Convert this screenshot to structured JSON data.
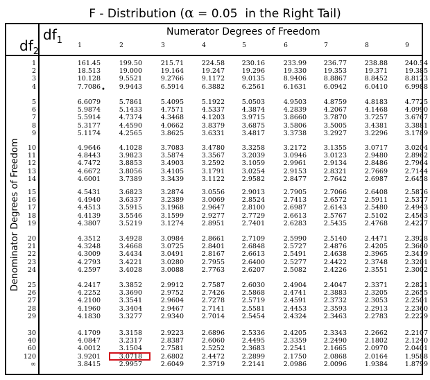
{
  "title": {
    "prefix": "F - Distribution (",
    "alpha": "α",
    "suffix": " = 0.05  in the Right Tail)"
  },
  "header": {
    "df2": "df",
    "df2_sub": "2",
    "df1": "df",
    "df1_sub": "1",
    "numerator_label": "Numerator Degrees of Freedom",
    "denominator_label": "Denominator Degrees of Freedom",
    "columns": [
      "1",
      "2",
      "3",
      "4",
      "5",
      "6",
      "7",
      "8",
      "9"
    ]
  },
  "row_labels": [
    "1",
    "2",
    "3",
    "4",
    "5",
    "6",
    "7",
    "8",
    "9",
    "10",
    "11",
    "12",
    "13",
    "14",
    "15",
    "16",
    "17",
    "18",
    "19",
    "20",
    "21",
    "22",
    "23",
    "24",
    "25",
    "26",
    "27",
    "28",
    "29",
    "30",
    "40",
    "60",
    "120",
    "∞"
  ],
  "rows": [
    [
      "161.45",
      "199.50",
      "215.71",
      "224.58",
      "230.16",
      "233.99",
      "236.77",
      "238.88",
      "240.54"
    ],
    [
      "18.513",
      "19.000",
      "19.164",
      "19.247",
      "19.296",
      "19.330",
      "19.353",
      "19.371",
      "19.385"
    ],
    [
      "10.128",
      "9.5521",
      "9.2766",
      "9.1172",
      "9.0135",
      "8.9406",
      "8.8867",
      "8.8452",
      "8.8123"
    ],
    [
      "7.7086",
      "9.9443",
      "6.5914",
      "6.3882",
      "6.2561",
      "6.1631",
      "6.0942",
      "6.0410",
      "6.9988"
    ],
    [
      "6.6079",
      "5.7861",
      "5.4095",
      "5.1922",
      "5.0503",
      "4.9503",
      "4.8759",
      "4.8183",
      "4.7725"
    ],
    [
      "5.9874",
      "5.1433",
      "4.7571",
      "4.5337",
      "4.3874",
      "4.2839",
      "4.2067",
      "4.1468",
      "4.0990"
    ],
    [
      "5.5914",
      "4.7374",
      "4.3468",
      "4.1203",
      "3.9715",
      "3.8660",
      "3.7870",
      "3.7257",
      "3.6767"
    ],
    [
      "5.3177",
      "4.4590",
      "4.0662",
      "3.8379",
      "3.6875",
      "3.5806",
      "3.5005",
      "3.4381",
      "3.3881"
    ],
    [
      "5.1174",
      "4.2565",
      "3.8625",
      "3.6331",
      "3.4817",
      "3.3738",
      "3.2927",
      "3.2296",
      "3.1789"
    ],
    [
      "4.9646",
      "4.1028",
      "3.7083",
      "3.4780",
      "3.3258",
      "3.2172",
      "3.1355",
      "3.0717",
      "3.0204"
    ],
    [
      "4.8443",
      "3.9823",
      "3.5874",
      "3.3567",
      "3.2039",
      "3.0946",
      "3.0123",
      "2.9480",
      "2.8962"
    ],
    [
      "4.7472",
      "3.8853",
      "3.4903",
      "3.2592",
      "3.1059",
      "2.9961",
      "2.9134",
      "2.8486",
      "2.7964"
    ],
    [
      "4.6672",
      "3.8056",
      "3.4105",
      "3.1791",
      "3.0254",
      "2.9153",
      "2.8321",
      "2.7669",
      "2.7144"
    ],
    [
      "4.6001",
      "3.7389",
      "3.3439",
      "3.1122",
      "2.9582",
      "2.8477",
      "2.7642",
      "2.6987",
      "2.6458"
    ],
    [
      "4.5431",
      "3.6823",
      "3.2874",
      "3.0556",
      "2.9013",
      "2.7905",
      "2.7066",
      "2.6408",
      "2.5876"
    ],
    [
      "4.4940",
      "3.6337",
      "3.2389",
      "3.0069",
      "2.8524",
      "2.7413",
      "2.6572",
      "2.5911",
      "2.5377"
    ],
    [
      "4.4513",
      "3.5915",
      "3.1968",
      "2.9647",
      "2.8100",
      "2.6987",
      "2.6143",
      "2.5480",
      "2.4943"
    ],
    [
      "4.4139",
      "3.5546",
      "3.1599",
      "2.9277",
      "2.7729",
      "2.6613",
      "2.5767",
      "2.5102",
      "2.4563"
    ],
    [
      "4.3807",
      "3.5219",
      "3.1274",
      "2.8951",
      "2.7401",
      "2.6283",
      "2.5435",
      "2.4768",
      "2.4227"
    ],
    [
      "4.3512",
      "3.4928",
      "3.0984",
      "2.8661",
      "2.7109",
      "2.5990",
      "2.5140",
      "2.4471",
      "2.3928"
    ],
    [
      "4.3248",
      "3.4668",
      "3.0725",
      "2.8401",
      "2.6848",
      "2.5727",
      "2.4876",
      "2.4205",
      "2.3660"
    ],
    [
      "4.3009",
      "3.4434",
      "3.0491",
      "2.8167",
      "2.6613",
      "2.5491",
      "2.4638",
      "2.3965",
      "2.3419"
    ],
    [
      "4.2793",
      "3.4221",
      "3.0280",
      "2.7955",
      "2.6400",
      "2.5277",
      "2.4422",
      "2.3748",
      "2.3201"
    ],
    [
      "4.2597",
      "3.4028",
      "3.0088",
      "2.7763",
      "2.6207",
      "2.5082",
      "2.4226",
      "2.3551",
      "2.3002"
    ],
    [
      "4.2417",
      "3.3852",
      "2.9912",
      "2.7587",
      "2.6030",
      "2.4904",
      "2.4047",
      "2.3371",
      "2.2821"
    ],
    [
      "4.2252",
      "3.3690",
      "2.9752",
      "2.7426",
      "2.5868",
      "2.4741",
      "2.3883",
      "2.3205",
      "2.2655"
    ],
    [
      "4.2100",
      "3.3541",
      "2.9604",
      "2.7278",
      "2.5719",
      "2.4591",
      "2.3732",
      "2.3053",
      "2.2501"
    ],
    [
      "4.1960",
      "3.3404",
      "2.9467",
      "2.7141",
      "2.5581",
      "2.4453",
      "2.3593",
      "2.2913",
      "2.2360"
    ],
    [
      "4.1830",
      "3.3277",
      "2.9340",
      "2.7014",
      "2.5454",
      "2.4324",
      "2.3463",
      "2.2783",
      "2.2229"
    ],
    [
      "4.1709",
      "3.3158",
      "2.9223",
      "2.6896",
      "2.5336",
      "2.4205",
      "2.3343",
      "2.2662",
      "2.2107"
    ],
    [
      "4.0847",
      "3.2317",
      "2.8387",
      "2.6060",
      "2.4495",
      "2.3359",
      "2.2490",
      "2.1802",
      "2.1240"
    ],
    [
      "4.0012",
      "3.1504",
      "2.7581",
      "2.5252",
      "2.3683",
      "2.2541",
      "2.1665",
      "2.0970",
      "2.0401"
    ],
    [
      "3.9201",
      "3.0718",
      "2.6802",
      "2.4472",
      "2.2899",
      "2.1750",
      "2.0868",
      "2.0164",
      "1.9588"
    ],
    [
      "3.8415",
      "2.9957",
      "2.6049",
      "2.3719",
      "2.2141",
      "2.0986",
      "2.0096",
      "1.9384",
      "1.8799"
    ]
  ],
  "highlight_color": "#d1121b",
  "highlight_cell": {
    "row": "120",
    "column": "2",
    "value": "3.0718"
  }
}
